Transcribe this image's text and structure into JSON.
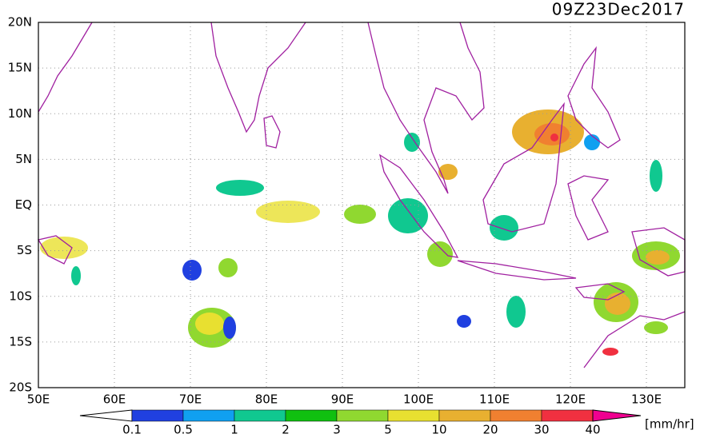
{
  "title": "09Z23Dec2017",
  "lat_labels": [
    "20N",
    "15N",
    "10N",
    "5N",
    "EQ",
    "5S",
    "10S",
    "15S",
    "20S"
  ],
  "lon_labels": [
    "50E",
    "60E",
    "70E",
    "80E",
    "90E",
    "100E",
    "110E",
    "120E",
    "130E"
  ],
  "colorbar": {
    "labels": [
      "0.1",
      "0.5",
      "1",
      "2",
      "3",
      "5",
      "10",
      "20",
      "30",
      "40"
    ],
    "unit": "[mm/hr]"
  }
}
